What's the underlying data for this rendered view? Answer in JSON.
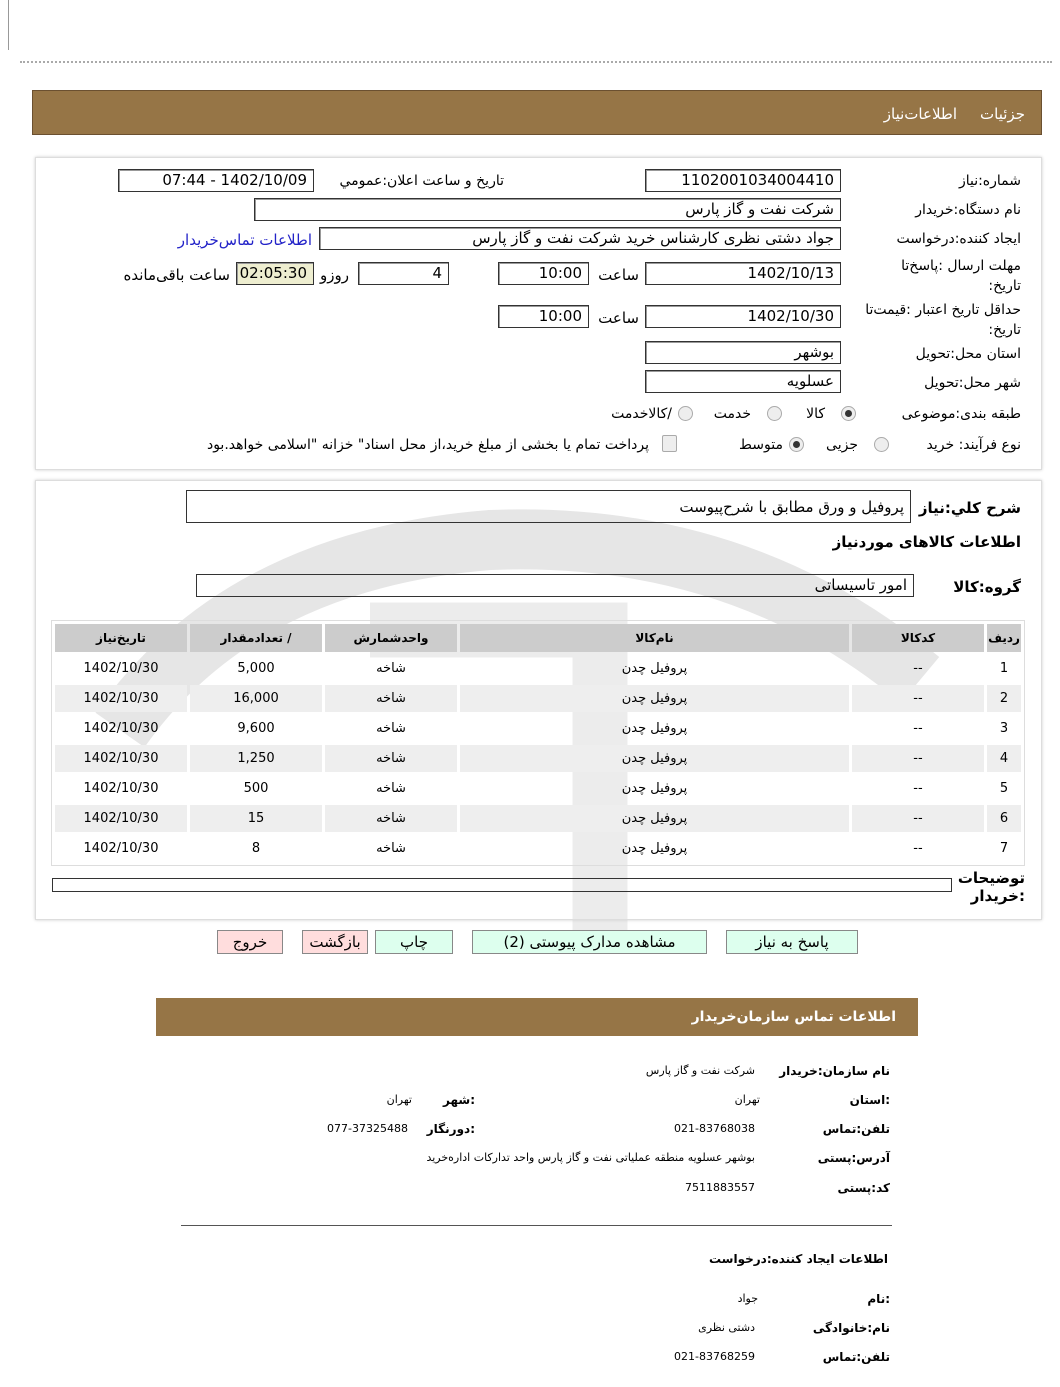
{
  "header": {
    "tabs": [
      "جزئیات",
      "اطلاعات‌نیاز"
    ]
  },
  "form": {
    "need_number_label": "شماره:نیاز",
    "need_number": "1102001034004410",
    "announce_label": "تاریخ و ساعت اعلان:عمومي",
    "announce_value": "1402/10/09 - 07:44",
    "buyer_org_label": "نام دستگاه:خریدار",
    "buyer_org": "شرکت نفت و گاز پارس",
    "creator_label": "ایجاد کننده:درخواست",
    "creator": "جواد دشتی نظری کارشناس خرید  شرکت نفت و گاز پارس",
    "contact_link": "اطلاعات تماس‌خریدار",
    "deadline_label": "مهلت ارسال :پاسخ‌تا تاریخ:",
    "deadline_date": "1402/10/13",
    "time_label": "ساعت",
    "deadline_time": "10:00",
    "days": "4",
    "days_label": "روزو",
    "remaining": "02:05:30",
    "remaining_label": "ساعت باقی‌مانده",
    "validity_label": "حداقل تاریخ اعتبار :قیمت‌تا تاریخ:",
    "validity_date": "1402/10/30",
    "validity_time": "10:00",
    "province_label": "استان محل:تحویل",
    "province": "بوشهر",
    "city_label": "شهر محل:تحویل",
    "city": "عسلویه",
    "category_label": "طبقه بندی:موضوعی",
    "category_options": [
      "کالا",
      "خدمت",
      "/کالاخدمت"
    ],
    "category_selected": "کالا",
    "process_label": "نوع فرآیند: خرید",
    "process_options": [
      "جزیی",
      "متوسط"
    ],
    "process_selected": "متوسط",
    "payment_note": "پرداخت تمام یا بخشی از مبلغ خرید،از محل اسناد\" خزانه \"اسلامی خواهد.بود"
  },
  "details": {
    "summary_label": "شرح کلي:نياز",
    "summary": "پروفیل و ورق مطابق با شرح‌پیوست",
    "goods_title": "اطلاعات کالاهای موردنیاز",
    "group_label": "گروه:کالا",
    "group": "امور تاسیساتی",
    "table": {
      "headers": [
        "ردیف",
        "کدکالا",
        "نام‌کالا",
        "واحدشمارش",
        "/ تعدادمقدار",
        "تاریخ‌نیاز"
      ],
      "rows": [
        [
          "1",
          "--",
          "پروفیل چدن",
          "شاخه",
          "5,000",
          "1402/10/30"
        ],
        [
          "2",
          "--",
          "پروفیل چدن",
          "شاخه",
          "16,000",
          "1402/10/30"
        ],
        [
          "3",
          "--",
          "پروفیل چدن",
          "شاخه",
          "9,600",
          "1402/10/30"
        ],
        [
          "4",
          "--",
          "پروفیل چدن",
          "شاخه",
          "1,250",
          "1402/10/30"
        ],
        [
          "5",
          "--",
          "پروفیل چدن",
          "شاخه",
          "500",
          "1402/10/30"
        ],
        [
          "6",
          "--",
          "پروفیل چدن",
          "شاخه",
          "15",
          "1402/10/30"
        ],
        [
          "7",
          "--",
          "پروفیل چدن",
          "شاخه",
          "8",
          "1402/10/30"
        ]
      ]
    },
    "buyer_notes_label": "توضیحات :خریدار"
  },
  "buttons": {
    "reply": "پاسخ به نیاز",
    "docs": "مشاهده مدارک پیوستی (2)",
    "print": "چاپ",
    "back": "بازگشت",
    "exit": "خروج"
  },
  "contact": {
    "title": "اطلاعات  تماس سازمان‌خریدار",
    "org_label": "نام سازمان:خریدار",
    "org": "شرکت نفت و گاز پارس",
    "province_label": ":استان",
    "province": "تهران",
    "city_label": ":شهر",
    "city": "تهران",
    "phone_label": "تلفن:تماس",
    "phone": "021-83768038",
    "fax_label": ":دورنگار",
    "fax": "077-37325488",
    "address_label": "آدرس:پستی",
    "address": "بوشهر عسلویه منطقه عملیاتی نفت و گاز پارس واحد تدارکات اداره‌خرید",
    "postal_label": "کد:پستی",
    "postal": "7511883557",
    "creator_title": "اطلاعات ایجاد کننده:درخواست",
    "name_label": ":نام",
    "name": "جواد",
    "family_label": "نام:خانوادگی",
    "family": "دشتی نظری",
    "creator_phone_label": "تلفن:تماس",
    "creator_phone": "021-83768259"
  }
}
